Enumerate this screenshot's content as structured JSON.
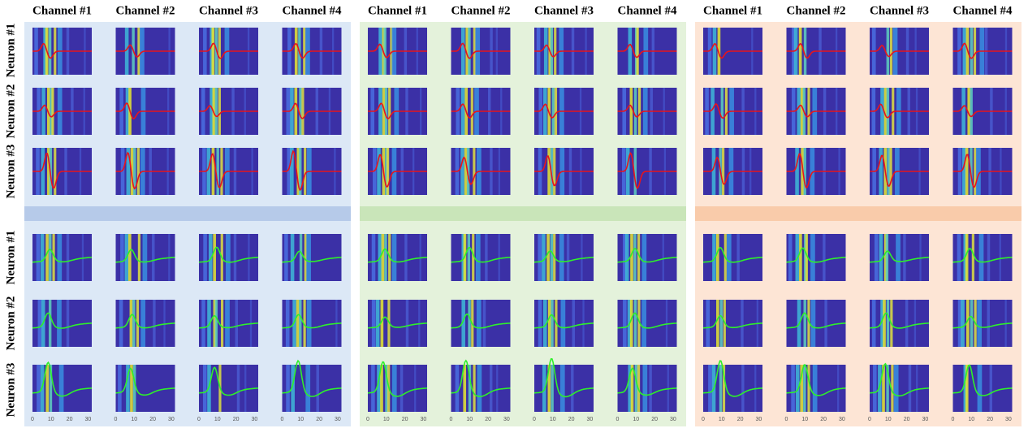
{
  "row_labels": [
    "Neuron #1",
    "Neuron #2",
    "Neuron #3",
    "Neuron #1",
    "Neuron #2",
    "Neuron #3"
  ],
  "panels": [
    {
      "columns": [
        "Channel #1",
        "Channel #2",
        "Channel #3",
        "Channel #4"
      ],
      "x_ticks": [
        0,
        10,
        20,
        30
      ],
      "x_lim": [
        0,
        32
      ]
    },
    {
      "columns": [
        "Channel #1",
        "Channel #2",
        "Channel #3",
        "Channel #4"
      ],
      "x_ticks": [
        0,
        10,
        20,
        30
      ],
      "x_lim": [
        0,
        32
      ]
    },
    {
      "columns": [
        "Channel #1",
        "Channel #2",
        "Channel #3",
        "Channel #4"
      ],
      "x_ticks": [
        0,
        10,
        20,
        30
      ],
      "x_lim": [
        0,
        32
      ]
    }
  ]
}
